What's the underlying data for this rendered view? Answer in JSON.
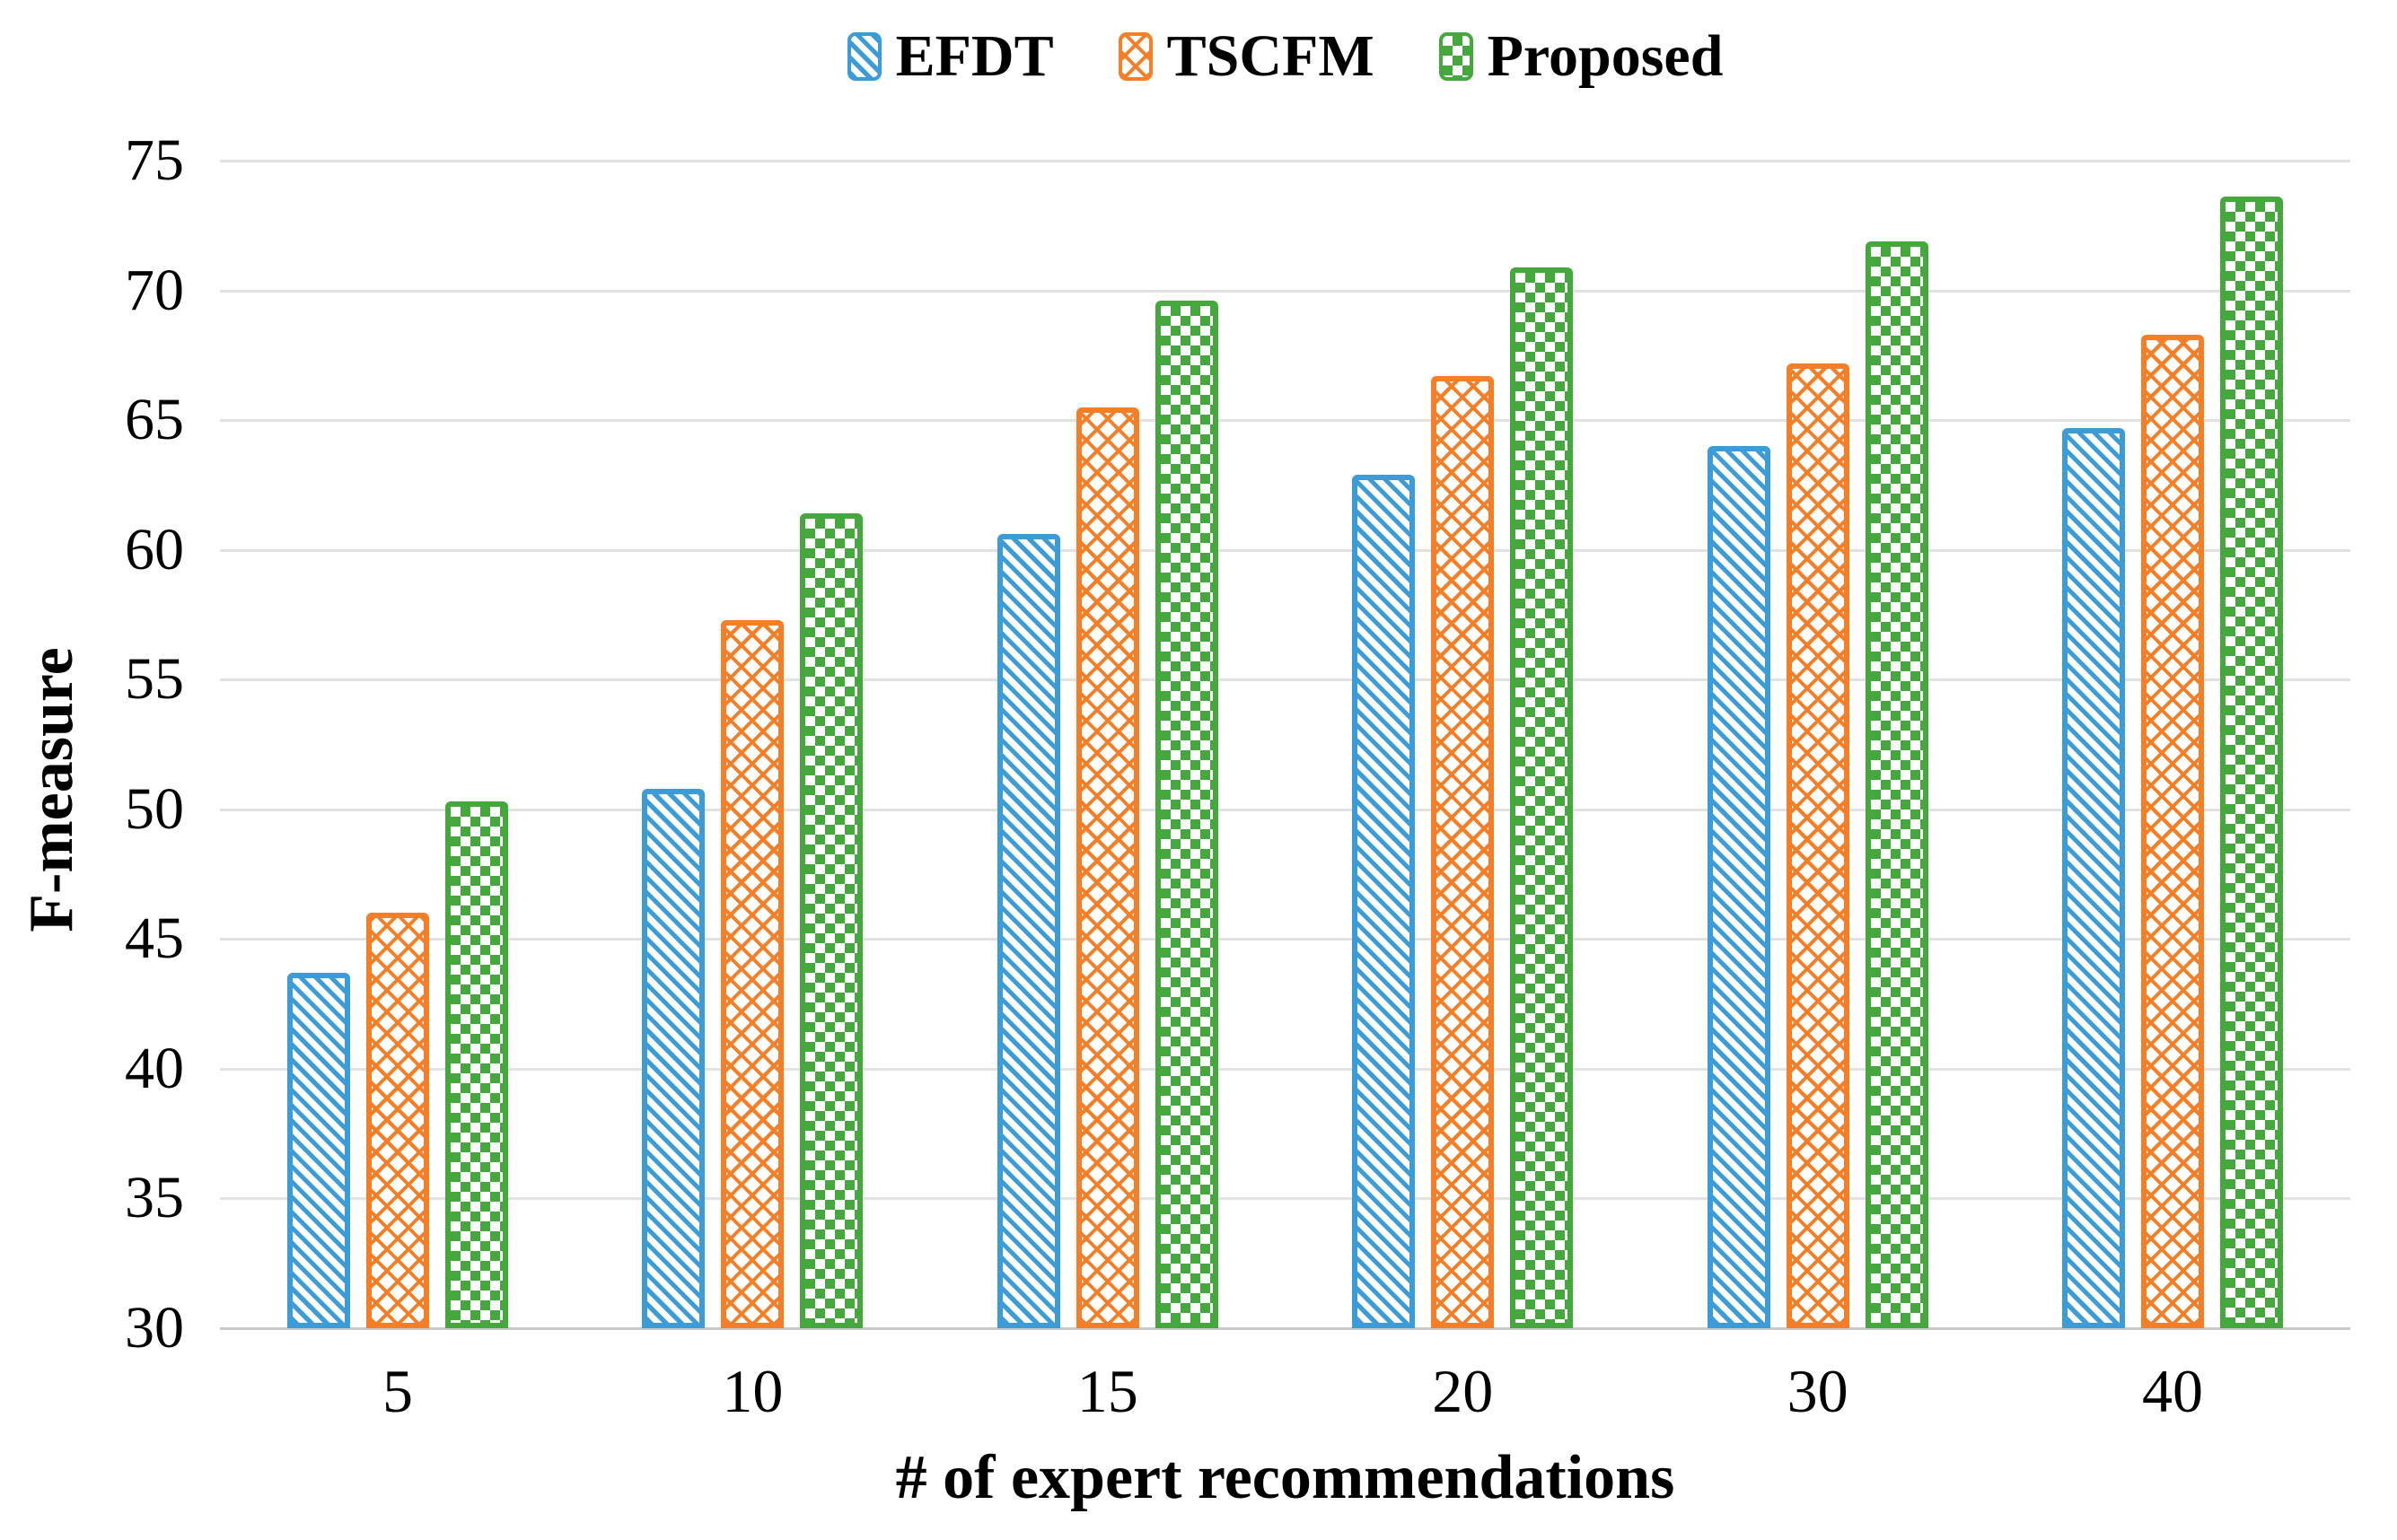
{
  "chart_data": {
    "type": "bar",
    "title": "",
    "xlabel": "# of expert recommendations",
    "ylabel": "F-measure",
    "categories": [
      "5",
      "10",
      "15",
      "20",
      "30",
      "40"
    ],
    "series": [
      {
        "name": "EFDT",
        "color": "#3B9CD8",
        "pattern": "diagonal-stripes",
        "values": [
          43.7,
          50.8,
          60.6,
          62.9,
          64.0,
          64.7
        ]
      },
      {
        "name": "TSCFM",
        "color": "#F57E26",
        "pattern": "diagonal-crosshatch",
        "values": [
          46.0,
          57.3,
          65.5,
          66.7,
          67.2,
          68.3
        ]
      },
      {
        "name": "Proposed",
        "color": "#45A83C",
        "pattern": "checkerboard",
        "values": [
          50.3,
          61.4,
          69.6,
          70.9,
          71.9,
          73.6
        ]
      }
    ],
    "ylim": [
      30,
      75
    ],
    "yticks": [
      30,
      35,
      40,
      45,
      50,
      55,
      60,
      65,
      70,
      75
    ],
    "grid": "horizontal",
    "legend_position": "top",
    "gridline_color": "#E2E2E2",
    "axis_line_color": "#C9C9C9",
    "text_color": "#000000"
  }
}
